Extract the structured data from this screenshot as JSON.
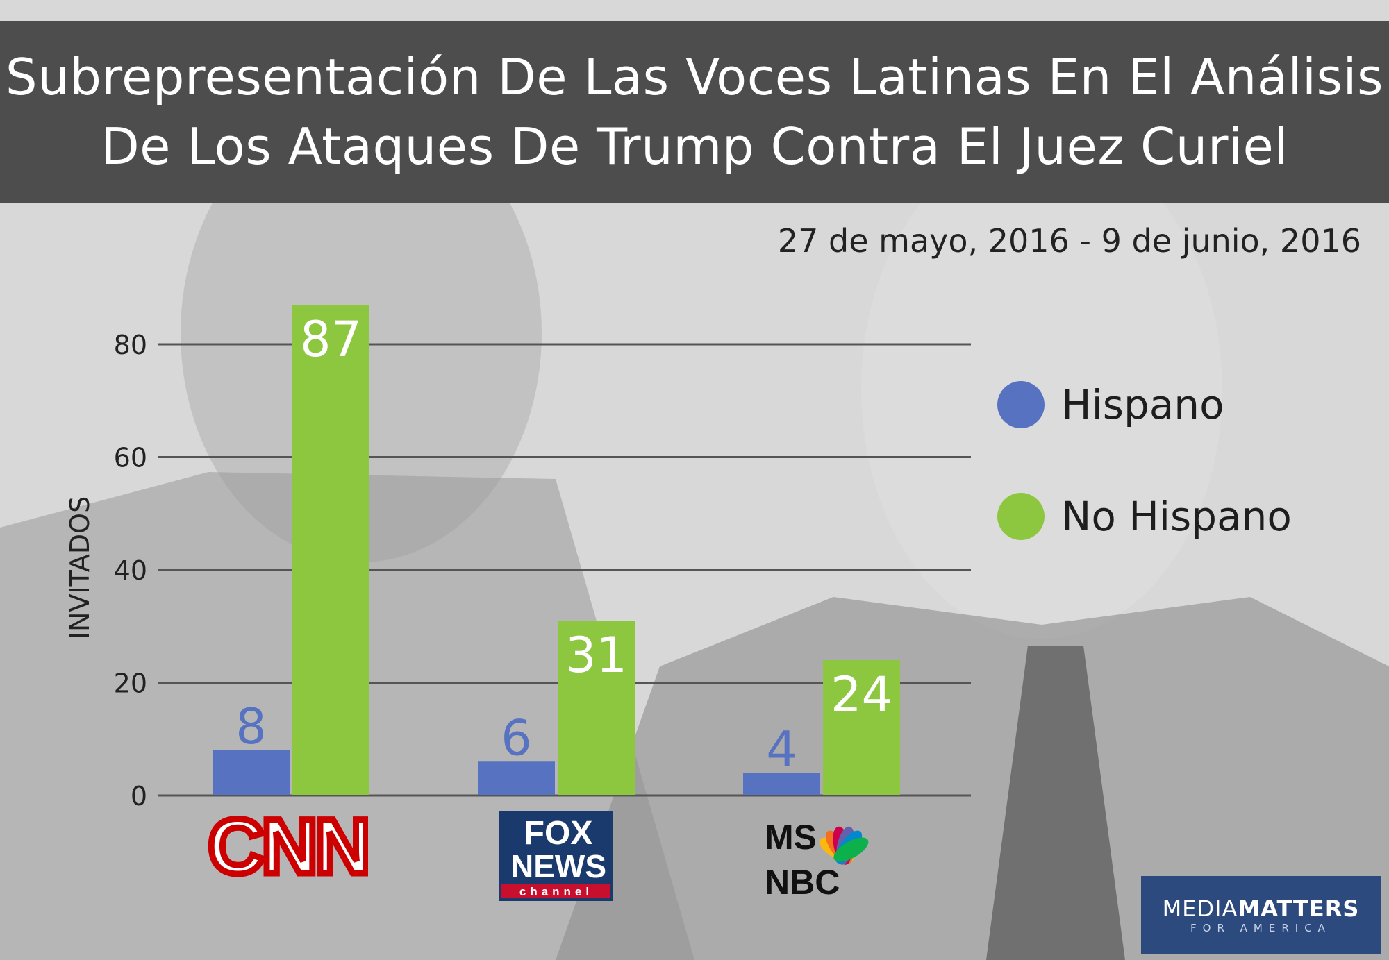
{
  "header": {
    "title_line1": "Subrepresentación De Las Voces Latinas En El Análisis",
    "title_line2": "De Los Ataques De Trump Contra El Juez Curiel"
  },
  "subtitle": "27 de mayo, 2016 - 9 de junio, 2016",
  "colors": {
    "hispano": "#5772c0",
    "no_hispano": "#8dc63f",
    "title_bar": "#4d4d4d",
    "badge": "#2c4a7e"
  },
  "legend": {
    "hispano": "Hispano",
    "no_hispano": "No Hispano"
  },
  "logos": {
    "cnn": "CNN",
    "fox": "FOX",
    "news": "NEWS",
    "channel": "channel",
    "msnbc_ms": "MS",
    "msnbc_nbc": "NBC"
  },
  "badge": {
    "main_a": "MEDIA",
    "main_b": "MATTERS",
    "sub": "FOR AMERICA"
  },
  "chart_data": {
    "type": "bar",
    "categories": [
      "CNN",
      "FOX NEWS",
      "MSNBC"
    ],
    "series": [
      {
        "name": "Hispano",
        "values": [
          8,
          6,
          4
        ],
        "color": "#5772c0"
      },
      {
        "name": "No Hispano",
        "values": [
          87,
          31,
          24
        ],
        "color": "#8dc63f"
      }
    ],
    "ylabel": "INVITADOS",
    "ylim": [
      0,
      80
    ],
    "yticks": [
      0,
      20,
      40,
      60,
      80
    ],
    "grid": true,
    "legend_position": "right"
  }
}
